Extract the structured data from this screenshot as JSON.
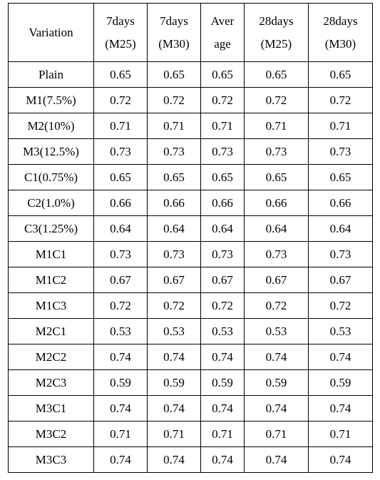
{
  "table": {
    "headers": [
      [
        "Variation"
      ],
      [
        "7days",
        "(M25)"
      ],
      [
        "7days",
        "(M30)"
      ],
      [
        "Aver",
        "age"
      ],
      [
        "28days",
        "(M25)"
      ],
      [
        "28days",
        "(M30)"
      ]
    ],
    "rows": [
      [
        "Plain",
        "0.65",
        "0.65",
        "0.65",
        "0.65",
        "0.65"
      ],
      [
        "M1(7.5%)",
        "0.72",
        "0.72",
        "0.72",
        "0.72",
        "0.72"
      ],
      [
        "M2(10%)",
        "0.71",
        "0.71",
        "0.71",
        "0.71",
        "0.71"
      ],
      [
        "M3(12.5%)",
        "0.73",
        "0.73",
        "0.73",
        "0.73",
        "0.73"
      ],
      [
        "C1(0.75%)",
        "0.65",
        "0.65",
        "0.65",
        "0.65",
        "0.65"
      ],
      [
        "C2(1.0%)",
        "0.66",
        "0.66",
        "0.66",
        "0.66",
        "0.66"
      ],
      [
        "C3(1.25%)",
        "0.64",
        "0.64",
        "0.64",
        "0.64",
        "0.64"
      ],
      [
        "M1C1",
        "0.73",
        "0.73",
        "0.73",
        "0.73",
        "0.73"
      ],
      [
        "M1C2",
        "0.67",
        "0.67",
        "0.67",
        "0.67",
        "0.67"
      ],
      [
        "M1C3",
        "0.72",
        "0.72",
        "0.72",
        "0.72",
        "0.72"
      ],
      [
        "M2C1",
        "0.53",
        "0.53",
        "0.53",
        "0.53",
        "0.53"
      ],
      [
        "M2C2",
        "0.74",
        "0.74",
        "0.74",
        "0.74",
        "0.74"
      ],
      [
        "M2C3",
        "0.59",
        "0.59",
        "0.59",
        "0.59",
        "0.59"
      ],
      [
        "M3C1",
        "0.74",
        "0.74",
        "0.74",
        "0.74",
        "0.74"
      ],
      [
        "M3C2",
        "0.71",
        "0.71",
        "0.71",
        "0.71",
        "0.71"
      ],
      [
        "M3C3",
        "0.74",
        "0.74",
        "0.74",
        "0.74",
        "0.74"
      ]
    ]
  }
}
